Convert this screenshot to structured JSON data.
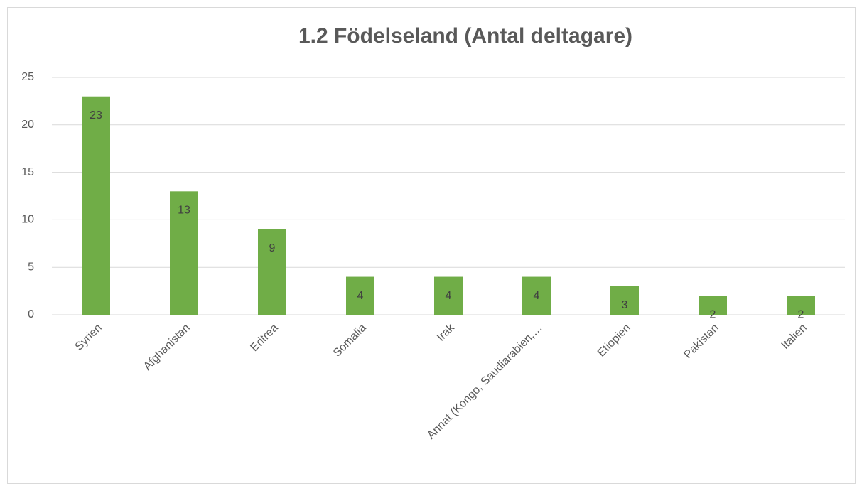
{
  "chart_data": {
    "type": "bar",
    "title": "1.2 Födelseland (Antal deltagare)",
    "categories": [
      "Syrien",
      "Afghanistan",
      "Eritrea",
      "Somalia",
      "Irak",
      "Annat (Kongo, Saudiarabien,…",
      "Etiopien",
      "Pakistan",
      "Italien"
    ],
    "values": [
      23,
      13,
      9,
      4,
      4,
      4,
      3,
      2,
      2
    ],
    "color": "#70ad47",
    "ylim": [
      0,
      25
    ],
    "yticks": [
      0,
      5,
      10,
      15,
      20,
      25
    ],
    "grid": true
  }
}
